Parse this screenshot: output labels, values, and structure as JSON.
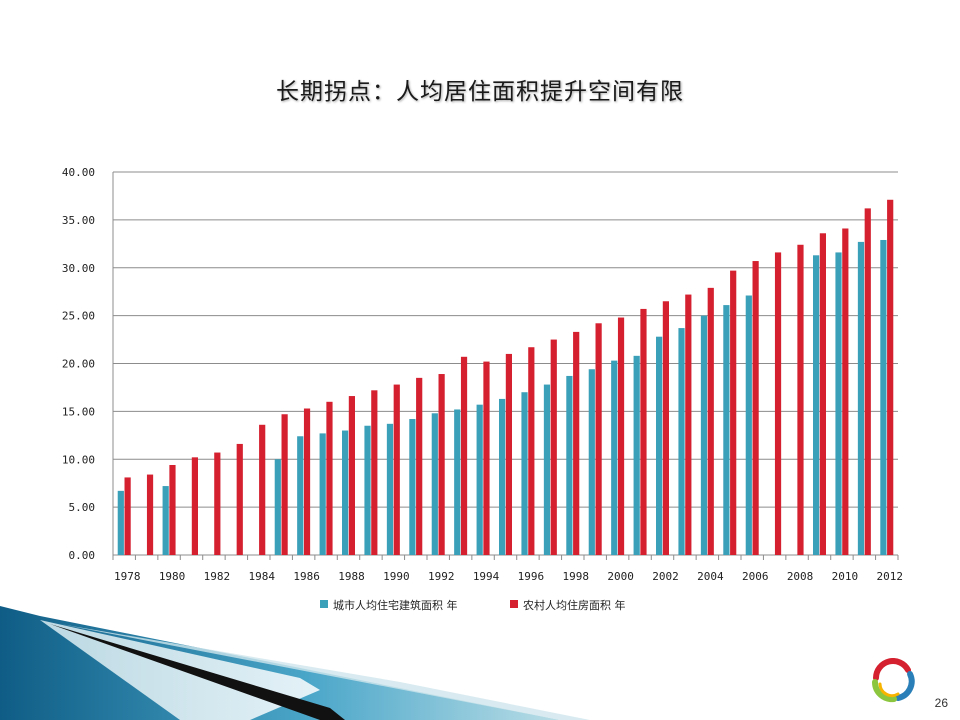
{
  "slide": {
    "title": "长期拐点：人均居住面积提升空间有限",
    "page_number": "26"
  },
  "colors": {
    "urban": "#3a9fb8",
    "rural": "#d4202f",
    "gridline": "#8c8c8c",
    "decor_dark": "#0f5d86",
    "decor_light": "#b9dde6"
  },
  "chart_data": {
    "type": "bar",
    "ylim": [
      0,
      40
    ],
    "yticks": [
      "0.00",
      "5.00",
      "10.00",
      "15.00",
      "20.00",
      "25.00",
      "30.00",
      "35.00",
      "40.00"
    ],
    "grid": true,
    "legend_position": "bottom",
    "categories": [
      "1978",
      "1979",
      "1980",
      "1981",
      "1982",
      "1983",
      "1984",
      "1985",
      "1986",
      "1987",
      "1988",
      "1989",
      "1990",
      "1991",
      "1992",
      "1993",
      "1994",
      "1995",
      "1996",
      "1997",
      "1998",
      "1999",
      "2000",
      "2001",
      "2002",
      "2003",
      "2004",
      "2005",
      "2006",
      "2007",
      "2008",
      "2009",
      "2010",
      "2011",
      "2012"
    ],
    "xtick_labels": [
      "1978",
      "1980",
      "1982",
      "1984",
      "1986",
      "1988",
      "1990",
      "1992",
      "1994",
      "1996",
      "1998",
      "2000",
      "2002",
      "2004",
      "2006",
      "2008",
      "2010",
      "2012"
    ],
    "series": [
      {
        "name": "城市人均住宅建筑面积 年",
        "color_key": "urban",
        "values": [
          6.7,
          null,
          7.2,
          null,
          null,
          null,
          null,
          10.0,
          12.4,
          12.7,
          13.0,
          13.5,
          13.7,
          14.2,
          14.8,
          15.2,
          15.7,
          16.3,
          17.0,
          17.8,
          18.7,
          19.4,
          20.3,
          20.8,
          22.8,
          23.7,
          25.0,
          26.1,
          27.1,
          null,
          null,
          31.3,
          31.6,
          32.7,
          32.9
        ]
      },
      {
        "name": "农村人均住房面积 年",
        "color_key": "rural",
        "values": [
          8.1,
          8.4,
          9.4,
          10.2,
          10.7,
          11.6,
          13.6,
          14.7,
          15.3,
          16.0,
          16.6,
          17.2,
          17.8,
          18.5,
          18.9,
          20.7,
          20.2,
          21.0,
          21.7,
          22.5,
          23.3,
          24.2,
          24.8,
          25.7,
          26.5,
          27.2,
          27.9,
          29.7,
          30.7,
          31.6,
          32.4,
          33.6,
          34.1,
          36.2,
          37.1
        ]
      }
    ]
  }
}
